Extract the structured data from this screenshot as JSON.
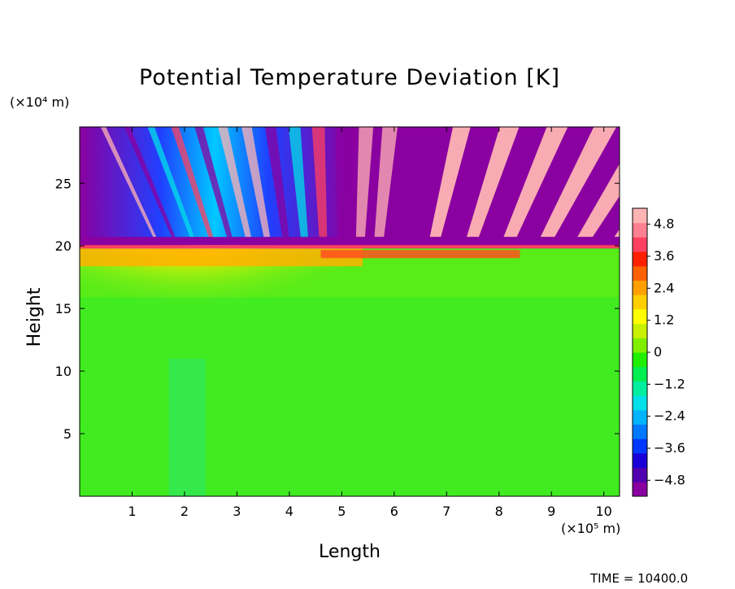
{
  "title": "Potential Temperature Deviation [K]",
  "time_stamp": "TIME = 10400.0",
  "chart_data": {
    "type": "heatmap",
    "variable": "Potential Temperature Deviation",
    "units": "K",
    "xlabel": "Length",
    "x_unit_label": "(×10⁵ m)",
    "ylabel": "Height",
    "y_unit_label": "(×10⁴ m)",
    "xlim": [
      0,
      10.3
    ],
    "ylim": [
      0,
      29.5
    ],
    "x_ticks": [
      1,
      2,
      3,
      4,
      5,
      6,
      7,
      8,
      9,
      10
    ],
    "x_tick_labels": [
      "1",
      "2",
      "3",
      "4",
      "5",
      "6",
      "7",
      "8",
      "9",
      "10"
    ],
    "y_ticks": [
      5,
      10,
      15,
      20,
      25
    ],
    "y_tick_labels": [
      "5",
      "10",
      "15",
      "20",
      "25"
    ],
    "colorbar": {
      "range": [
        -5.4,
        5.4
      ],
      "ticks": [
        4.8,
        3.6,
        2.4,
        1.2,
        0,
        -1.2,
        -2.4,
        -3.6,
        -4.8
      ],
      "tick_labels": [
        "4.8",
        "3.6",
        "2.4",
        "1.2",
        "0",
        "−1.2",
        "−2.4",
        "−3.6",
        "−4.8"
      ],
      "colors": [
        "#8a00a0",
        "#5000b0",
        "#1a00d8",
        "#0038ff",
        "#0078ff",
        "#00b4ff",
        "#00e0e8",
        "#00eea0",
        "#00ee50",
        "#20f000",
        "#80f000",
        "#c8f000",
        "#ffff00",
        "#ffd000",
        "#ffa000",
        "#ff6000",
        "#ff2000",
        "#ff4060",
        "#ff8090",
        "#ffb4b4"
      ]
    },
    "features": {
      "tropopause_height": 19.8,
      "background_value": 0,
      "upper_layer_wave_pattern": true
    }
  }
}
